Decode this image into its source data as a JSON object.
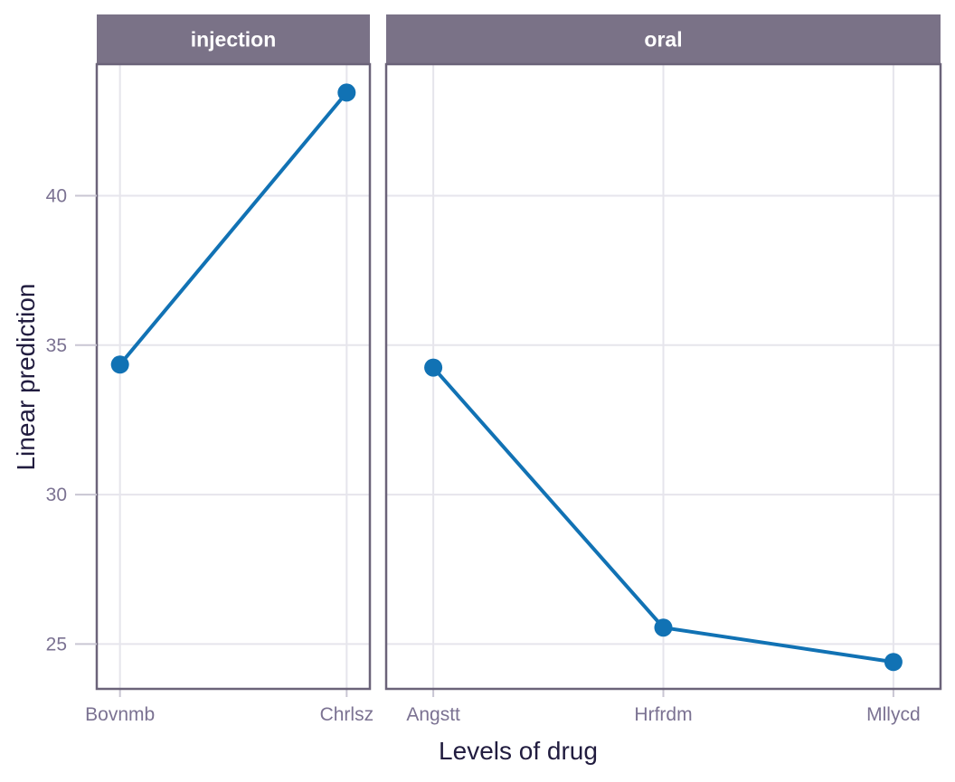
{
  "chart_data": {
    "type": "line",
    "title": "",
    "xlabel": "Levels of drug",
    "ylabel": "Linear prediction",
    "yticks": [
      25,
      30,
      35,
      40
    ],
    "ylim": [
      23.5,
      44.4
    ],
    "grid": true,
    "legend_position": "none",
    "facets": [
      {
        "label": "injection",
        "categories": [
          "Bovnmb",
          "Chrlsz"
        ],
        "values": [
          34.35,
          43.45
        ]
      },
      {
        "label": "oral",
        "categories": [
          "Angstt",
          "Hrfrdm",
          "Mllycd"
        ],
        "values": [
          34.25,
          25.55,
          24.4
        ]
      }
    ]
  },
  "colors": {
    "line": "#1172b4",
    "marker": "#1172b4",
    "strip_bg": "#7a7287",
    "strip_text": "#ffffff",
    "panel_border": "#6b6379",
    "gridline": "#e6e5ec",
    "tick_mark": "#c9c6d3",
    "tick_label": "#7b7292",
    "axis_title": "#211c3f",
    "background": "#ffffff"
  }
}
